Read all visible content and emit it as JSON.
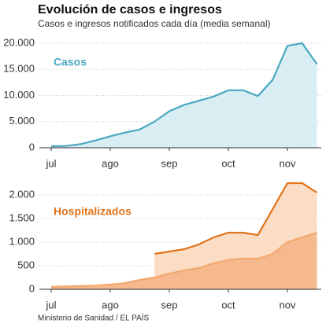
{
  "source": "Ministerio de Sanidad / EL PAÍS",
  "chart_data": [
    {
      "type": "area",
      "title": "Evolución de casos e ingresos",
      "subtitle": "Casos e ingresos notificados cada día (media semanal)",
      "categories": [
        "jul",
        null,
        null,
        null,
        "ago",
        null,
        null,
        null,
        "sep",
        null,
        null,
        null,
        "oct",
        null,
        null,
        null,
        "nov",
        null,
        null
      ],
      "series": [
        {
          "name": "Casos",
          "color": "#4aa8c0",
          "fill": "#d8eef3",
          "values": [
            300,
            350,
            700,
            1400,
            2200,
            2900,
            3500,
            5000,
            7000,
            8200,
            9000,
            9800,
            11000,
            11000,
            9900,
            13000,
            19500,
            20000,
            16000
          ]
        }
      ],
      "ylim": [
        0,
        21500
      ],
      "yticks": [
        0,
        {
          "value": 5000,
          "label": "5.000"
        },
        {
          "value": 10000,
          "label": "10.000"
        },
        {
          "value": 15000,
          "label": "15.000"
        },
        {
          "value": 20000,
          "label": "20.000"
        }
      ],
      "grid": true
    },
    {
      "type": "area",
      "categories": [
        "jul",
        null,
        null,
        null,
        "ago",
        null,
        null,
        null,
        "sep",
        null,
        null,
        null,
        "oct",
        null,
        null,
        null,
        "nov",
        null,
        null
      ],
      "series": [
        {
          "name": "Hospitalizados",
          "color": "#e2731a",
          "fill": "#fbdcc4",
          "values": [
            null,
            null,
            null,
            null,
            null,
            null,
            null,
            750,
            800,
            850,
            950,
            1100,
            1200,
            1200,
            1150,
            1700,
            2250,
            2250,
            2050
          ]
        },
        {
          "color": "#f3a86e",
          "fill": "#f6b98e",
          "values": [
            50,
            60,
            70,
            80,
            100,
            130,
            200,
            250,
            330,
            400,
            450,
            550,
            620,
            650,
            650,
            750,
            1000,
            1100,
            1200
          ]
        }
      ],
      "ylim": [
        0,
        2300
      ],
      "yticks": [
        0,
        500,
        {
          "value": 1000,
          "label": "1.000"
        },
        {
          "value": 1500,
          "label": "1.500"
        },
        {
          "value": 2000,
          "label": "2.000"
        }
      ],
      "grid": true
    }
  ]
}
